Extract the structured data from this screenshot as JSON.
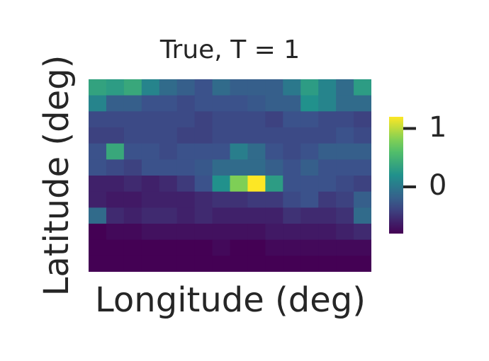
{
  "chart_data": {
    "type": "heatmap",
    "title": "True, T = 1",
    "xlabel": "Longitude (deg)",
    "ylabel": "Latitude (deg)",
    "colormap": "viridis",
    "colorbar": {
      "vmin": -0.8,
      "vmax": 1.2,
      "ticks": [
        1,
        0
      ],
      "tick_labels": [
        "1",
        "0"
      ]
    },
    "grid": false,
    "value_grid": [
      [
        0.35,
        0.3,
        0.4,
        0.1,
        -0.1,
        -0.2,
        -0.3,
        -0.1,
        -0.2,
        -0.2,
        -0.2,
        0.0,
        0.3,
        0.1,
        -0.1,
        0.3
      ],
      [
        0.1,
        -0.2,
        -0.2,
        -0.3,
        -0.3,
        -0.35,
        -0.3,
        -0.3,
        -0.3,
        -0.25,
        -0.2,
        -0.2,
        0.2,
        0.1,
        -0.1,
        -0.1
      ],
      [
        -0.35,
        -0.35,
        -0.35,
        -0.35,
        -0.35,
        -0.35,
        -0.4,
        -0.35,
        -0.35,
        -0.35,
        -0.4,
        -0.3,
        -0.3,
        -0.35,
        -0.35,
        -0.4
      ],
      [
        -0.4,
        -0.4,
        -0.35,
        -0.35,
        -0.35,
        -0.4,
        -0.4,
        -0.35,
        -0.35,
        -0.35,
        -0.35,
        -0.35,
        -0.35,
        -0.35,
        -0.3,
        -0.35
      ],
      [
        -0.3,
        0.4,
        -0.3,
        -0.3,
        -0.35,
        -0.3,
        -0.3,
        -0.3,
        0.05,
        -0.1,
        -0.3,
        -0.35,
        -0.3,
        -0.2,
        -0.2,
        -0.2
      ],
      [
        -0.3,
        -0.35,
        -0.4,
        -0.3,
        -0.3,
        -0.3,
        -0.25,
        -0.1,
        -0.1,
        -0.1,
        -0.2,
        -0.3,
        -0.2,
        -0.3,
        -0.3,
        -0.3
      ],
      [
        -0.6,
        -0.6,
        -0.55,
        -0.6,
        -0.55,
        -0.45,
        -0.3,
        0.2,
        0.8,
        1.2,
        0.3,
        -0.3,
        -0.3,
        -0.3,
        -0.35,
        -0.4
      ],
      [
        -0.6,
        -0.65,
        -0.65,
        -0.6,
        -0.6,
        -0.6,
        -0.55,
        -0.5,
        -0.5,
        -0.45,
        -0.45,
        -0.35,
        -0.3,
        -0.45,
        -0.4,
        -0.2
      ],
      [
        -0.1,
        -0.55,
        -0.6,
        -0.55,
        -0.55,
        -0.6,
        -0.55,
        -0.6,
        -0.6,
        -0.6,
        -0.6,
        -0.5,
        -0.55,
        -0.55,
        -0.5,
        -0.1
      ],
      [
        -0.8,
        -0.75,
        -0.75,
        -0.7,
        -0.7,
        -0.7,
        -0.7,
        -0.7,
        -0.7,
        -0.7,
        -0.65,
        -0.65,
        -0.65,
        -0.65,
        -0.6,
        -0.55
      ],
      [
        -0.8,
        -0.8,
        -0.8,
        -0.8,
        -0.8,
        -0.8,
        -0.8,
        -0.75,
        -0.8,
        -0.8,
        -0.75,
        -0.75,
        -0.75,
        -0.75,
        -0.75,
        -0.75
      ],
      [
        -0.8,
        -0.8,
        -0.8,
        -0.8,
        -0.8,
        -0.8,
        -0.8,
        -0.8,
        -0.8,
        -0.8,
        -0.8,
        -0.8,
        -0.8,
        -0.8,
        -0.8,
        -0.8
      ]
    ]
  }
}
